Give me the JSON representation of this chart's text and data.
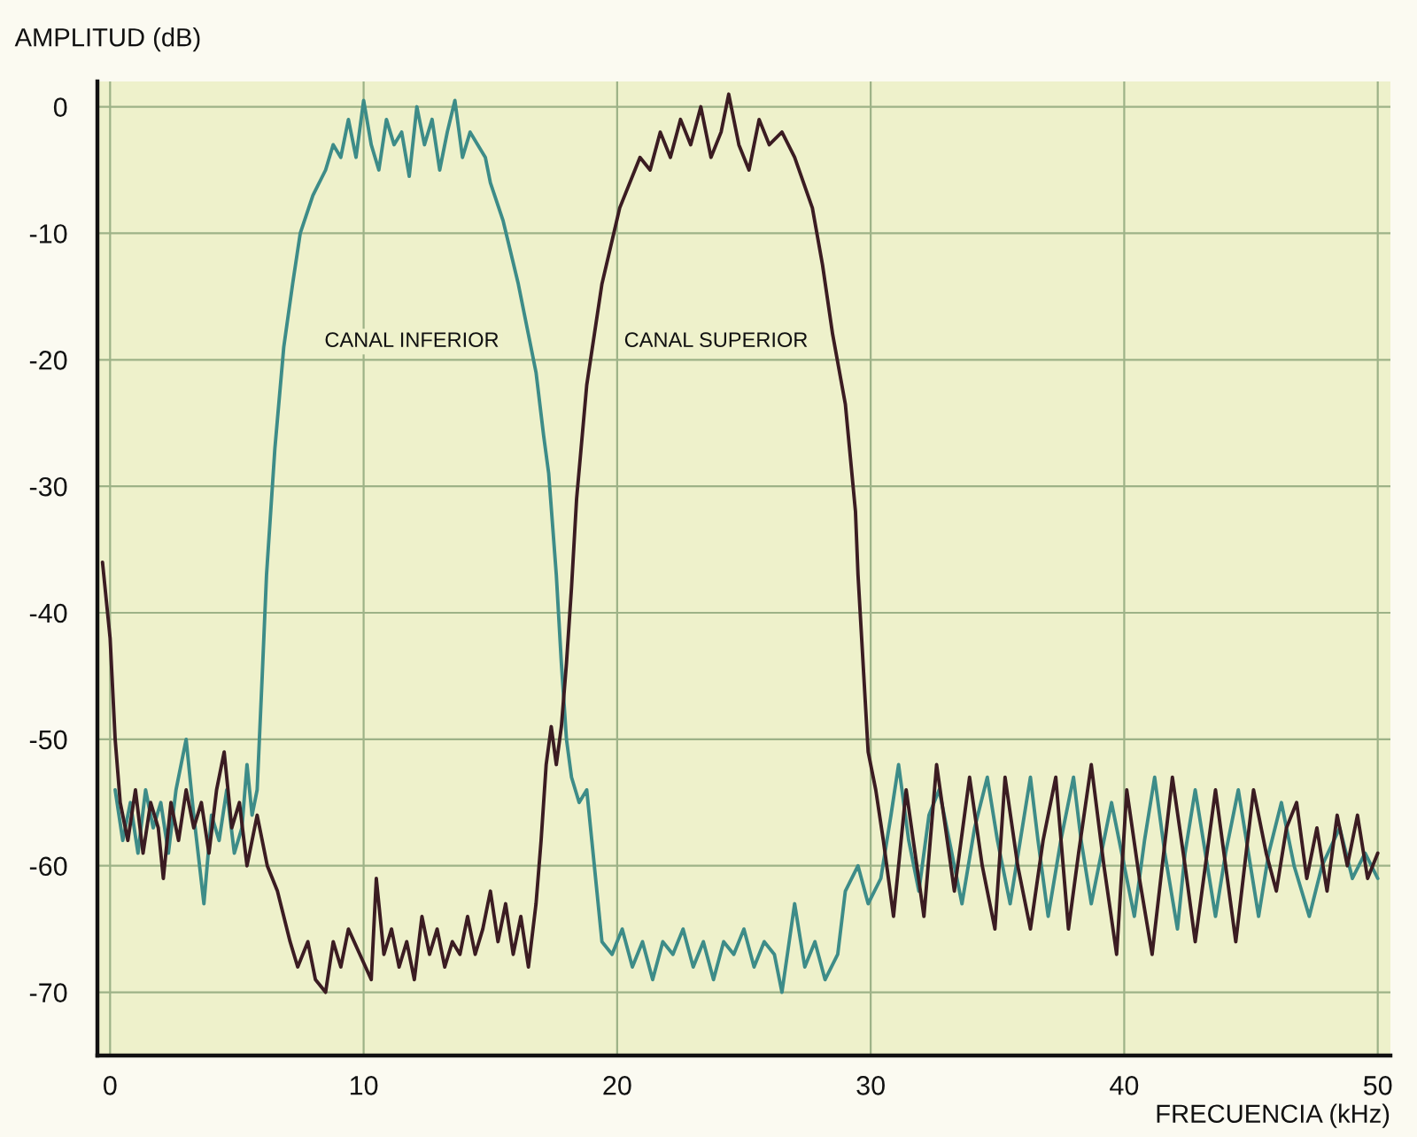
{
  "chart_data": {
    "type": "line",
    "xlabel": "FRECUENCIA (kHz)",
    "ylabel": "AMPLITUD (dB)",
    "xlim": [
      -0.5,
      50.5
    ],
    "ylim": [
      -75,
      2
    ],
    "xticks": [
      0,
      10,
      20,
      30,
      40,
      50
    ],
    "yticks": [
      0,
      -10,
      -20,
      -30,
      -40,
      -50,
      -60,
      -70
    ],
    "grid": true,
    "series": [
      {
        "name": "CANAL INFERIOR",
        "color": "#3d8c88",
        "x": [
          0.2,
          0.5,
          0.8,
          1.1,
          1.4,
          1.7,
          2.0,
          2.3,
          2.6,
          3.0,
          3.3,
          3.7,
          4.0,
          4.3,
          4.6,
          4.9,
          5.2,
          5.4,
          5.6,
          5.8,
          6.0,
          6.17,
          6.5,
          6.85,
          7.2,
          7.5,
          8.0,
          8.5,
          8.8,
          9.1,
          9.4,
          9.7,
          10.0,
          10.3,
          10.6,
          10.9,
          11.2,
          11.5,
          11.8,
          12.1,
          12.4,
          12.7,
          13.0,
          13.3,
          13.6,
          13.9,
          14.2,
          14.5,
          14.8,
          15.0,
          15.5,
          16.1,
          16.5,
          16.8,
          17.1,
          17.3,
          17.6,
          17.8,
          18.0,
          18.2,
          18.5,
          18.8,
          19.0,
          19.2,
          19.4,
          19.8,
          20.2,
          20.6,
          21.0,
          21.4,
          21.8,
          22.2,
          22.6,
          23.0,
          23.4,
          23.8,
          24.2,
          24.6,
          25.0,
          25.4,
          25.8,
          26.2,
          26.5,
          27.0,
          27.4,
          27.8,
          28.2,
          28.7,
          29.0,
          29.5,
          29.9,
          30.4,
          30.8,
          31.1,
          31.5,
          31.9,
          32.3,
          32.7,
          33.1,
          33.6,
          34.1,
          34.6,
          35.0,
          35.5,
          35.9,
          36.3,
          36.6,
          37.0,
          37.5,
          38.0,
          38.3,
          38.7,
          39.1,
          39.5,
          40.0,
          40.4,
          40.8,
          41.2,
          41.6,
          42.1,
          42.4,
          42.8,
          43.2,
          43.6,
          44.0,
          44.5,
          44.9,
          45.3,
          45.7,
          46.2,
          46.7,
          47.3,
          47.8,
          48.5,
          49.0,
          49.5,
          50.0
        ],
        "values": [
          -54,
          -58,
          -55,
          -59,
          -54,
          -57,
          -55,
          -59,
          -54,
          -50,
          -56,
          -63,
          -56,
          -58,
          -54,
          -59,
          -57,
          -52,
          -56,
          -54,
          -45,
          -37,
          -27,
          -19,
          -14,
          -10,
          -7,
          -5,
          -3,
          -4,
          -1,
          -4,
          0.5,
          -3,
          -5,
          -1,
          -3,
          -2,
          -5.5,
          0,
          -3,
          -1,
          -5,
          -2,
          0.5,
          -4,
          -2,
          -3,
          -4,
          -6,
          -9,
          -14,
          -18,
          -21,
          -26,
          -29,
          -37,
          -44,
          -50,
          -53,
          -55,
          -54,
          -58,
          -62,
          -66,
          -67,
          -65,
          -68,
          -66,
          -69,
          -66,
          -67,
          -65,
          -68,
          -66,
          -69,
          -66,
          -67,
          -65,
          -68,
          -66,
          -67,
          -70,
          -63,
          -68,
          -66,
          -69,
          -67,
          -62,
          -60,
          -63,
          -61,
          -56,
          -52,
          -58,
          -62,
          -56,
          -54,
          -58,
          -63,
          -57,
          -53,
          -58,
          -63,
          -58,
          -53,
          -58,
          -64,
          -58,
          -53,
          -58,
          -63,
          -59,
          -55,
          -60,
          -64,
          -58,
          -53,
          -59,
          -65,
          -59,
          -54,
          -59,
          -64,
          -59,
          -54,
          -59,
          -64,
          -59,
          -55,
          -60,
          -64,
          -60,
          -57,
          -61,
          -59,
          -61
        ]
      },
      {
        "name": "CANAL SUPERIOR",
        "color": "#3b1c22",
        "x": [
          -0.3,
          0.0,
          0.2,
          0.4,
          0.7,
          1.0,
          1.3,
          1.6,
          1.9,
          2.1,
          2.4,
          2.7,
          3.0,
          3.3,
          3.6,
          3.9,
          4.2,
          4.5,
          4.8,
          5.1,
          5.4,
          5.8,
          6.2,
          6.6,
          7.1,
          7.4,
          7.8,
          8.1,
          8.5,
          8.8,
          9.1,
          9.4,
          10.3,
          10.5,
          10.8,
          11.1,
          11.4,
          11.7,
          12.0,
          12.3,
          12.6,
          12.9,
          13.2,
          13.5,
          13.8,
          14.1,
          14.4,
          14.7,
          15.0,
          15.3,
          15.6,
          15.9,
          16.2,
          16.5,
          16.8,
          17.0,
          17.2,
          17.4,
          17.6,
          17.8,
          18.0,
          18.2,
          18.4,
          18.8,
          19.4,
          20.1,
          20.9,
          21.3,
          21.7,
          22.1,
          22.5,
          22.9,
          23.3,
          23.7,
          24.1,
          24.4,
          24.8,
          25.2,
          25.6,
          26.0,
          26.5,
          27.0,
          27.7,
          28.1,
          28.5,
          29.0,
          29.4,
          29.5,
          29.9,
          30.2,
          30.5,
          30.9,
          31.4,
          32.1,
          32.6,
          33.3,
          33.9,
          34.4,
          34.9,
          35.3,
          35.8,
          36.3,
          36.8,
          37.3,
          37.8,
          38.2,
          38.7,
          39.2,
          39.7,
          40.1,
          40.6,
          41.1,
          41.9,
          42.4,
          42.8,
          43.2,
          43.6,
          44.0,
          44.4,
          45.1,
          45.6,
          46.0,
          46.4,
          46.8,
          47.2,
          47.6,
          48.0,
          48.4,
          48.8,
          49.2,
          49.6,
          50.0
        ],
        "values": [
          -36,
          -42,
          -50,
          -55,
          -58,
          -54,
          -59,
          -55,
          -57,
          -61,
          -55,
          -58,
          -54,
          -57,
          -55,
          -59,
          -54,
          -51,
          -57,
          -55,
          -60,
          -56,
          -60,
          -62,
          -66,
          -68,
          -66,
          -69,
          -70,
          -66,
          -68,
          -65,
          -69,
          -61,
          -67,
          -65,
          -68,
          -66,
          -69,
          -64,
          -67,
          -65,
          -68,
          -66,
          -67,
          -64,
          -67,
          -65,
          -62,
          -66,
          -63,
          -67,
          -64,
          -68,
          -63,
          -58,
          -52,
          -49,
          -52,
          -49,
          -44,
          -38,
          -31,
          -22,
          -14,
          -8,
          -4,
          -5,
          -2,
          -4,
          -1,
          -3,
          0,
          -4,
          -2,
          1,
          -3,
          -5,
          -1,
          -3,
          -2,
          -4,
          -8,
          -12.5,
          -18,
          -23.5,
          -32,
          -37,
          -51,
          -54,
          -58,
          -64,
          -54,
          -64,
          -52,
          -62,
          -53,
          -60,
          -65,
          -53,
          -60,
          -65,
          -58,
          -53,
          -65,
          -59,
          -52,
          -60,
          -67,
          -54,
          -61,
          -67,
          -53,
          -60,
          -66,
          -60,
          -54,
          -60,
          -66,
          -54,
          -59,
          -62,
          -57,
          -55,
          -61,
          -57,
          -62,
          -56,
          -60,
          -56,
          -61,
          -59
        ]
      }
    ]
  }
}
